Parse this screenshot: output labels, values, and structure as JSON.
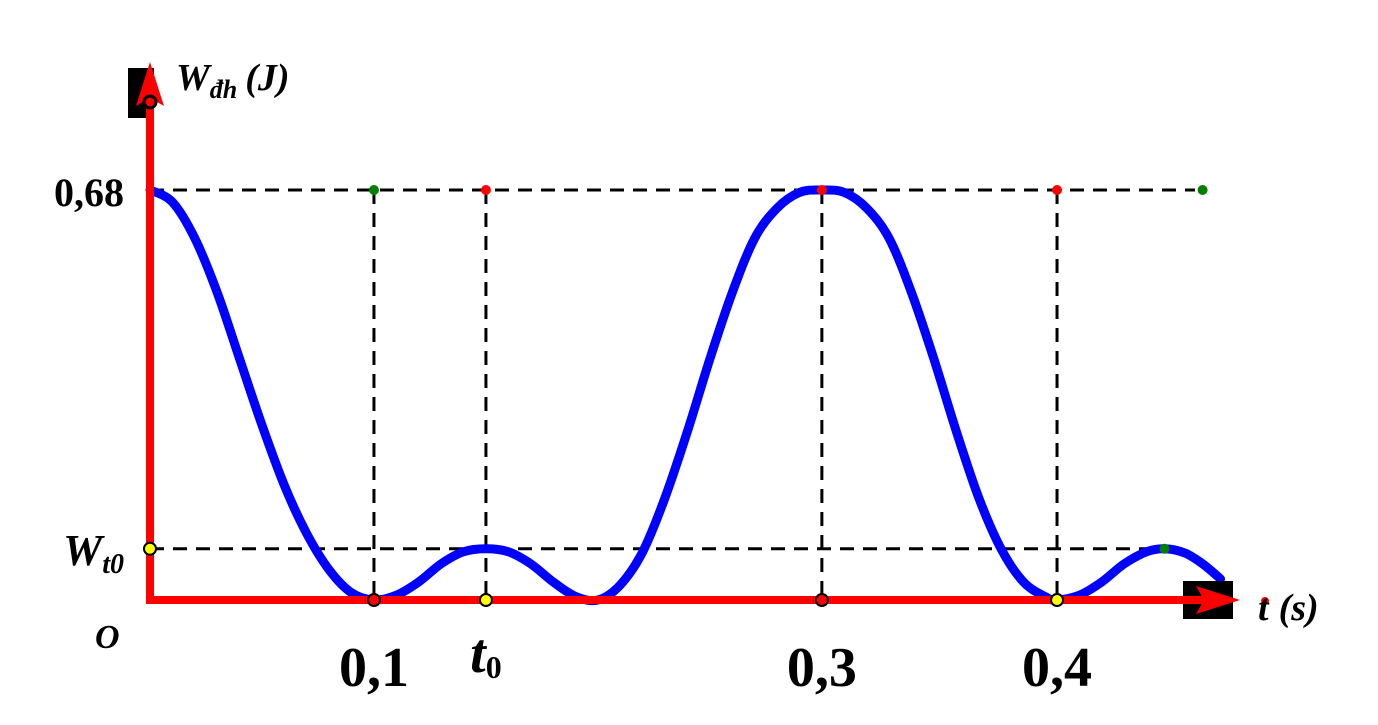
{
  "chart_data": {
    "type": "line",
    "title": "",
    "ylabel": {
      "symbol": "W",
      "subscript": "đh",
      "unit": "(J)"
    },
    "xlabel": {
      "symbol": "t",
      "unit": "(s)"
    },
    "origin_label": "O",
    "xlim": [
      0,
      0.48
    ],
    "ylim": [
      0,
      0.68
    ],
    "y_ticks": [
      {
        "value": 0.68,
        "label": "0,68"
      },
      {
        "value": 0.085,
        "label": "W",
        "subscript": "t0"
      }
    ],
    "x_ticks": [
      {
        "value": 0.1,
        "label": "0,1"
      },
      {
        "value": 0.15,
        "label": "t",
        "subscript": "0"
      },
      {
        "value": 0.3,
        "label": "0,3"
      },
      {
        "value": 0.405,
        "label": "0,4"
      }
    ],
    "series": [
      {
        "color": "#0000ff",
        "points": [
          [
            0.0,
            0.68
          ],
          [
            0.01,
            0.66
          ],
          [
            0.02,
            0.6
          ],
          [
            0.03,
            0.51
          ],
          [
            0.04,
            0.4
          ],
          [
            0.05,
            0.29
          ],
          [
            0.06,
            0.19
          ],
          [
            0.07,
            0.11
          ],
          [
            0.08,
            0.05
          ],
          [
            0.09,
            0.012
          ],
          [
            0.1,
            0.0
          ],
          [
            0.11,
            0.008
          ],
          [
            0.12,
            0.03
          ],
          [
            0.13,
            0.06
          ],
          [
            0.14,
            0.08
          ],
          [
            0.15,
            0.085
          ],
          [
            0.16,
            0.08
          ],
          [
            0.17,
            0.06
          ],
          [
            0.18,
            0.03
          ],
          [
            0.19,
            0.006
          ],
          [
            0.2,
            0.0
          ],
          [
            0.21,
            0.025
          ],
          [
            0.22,
            0.08
          ],
          [
            0.23,
            0.17
          ],
          [
            0.24,
            0.28
          ],
          [
            0.25,
            0.4
          ],
          [
            0.26,
            0.51
          ],
          [
            0.27,
            0.6
          ],
          [
            0.28,
            0.65
          ],
          [
            0.29,
            0.676
          ],
          [
            0.3,
            0.68
          ],
          [
            0.31,
            0.676
          ],
          [
            0.32,
            0.65
          ],
          [
            0.33,
            0.6
          ],
          [
            0.34,
            0.51
          ],
          [
            0.35,
            0.4
          ],
          [
            0.36,
            0.28
          ],
          [
            0.37,
            0.17
          ],
          [
            0.38,
            0.085
          ],
          [
            0.39,
            0.03
          ],
          [
            0.4,
            0.005
          ],
          [
            0.405,
            0.0
          ],
          [
            0.415,
            0.008
          ],
          [
            0.425,
            0.03
          ],
          [
            0.435,
            0.06
          ],
          [
            0.445,
            0.08
          ],
          [
            0.453,
            0.085
          ],
          [
            0.462,
            0.078
          ],
          [
            0.47,
            0.06
          ],
          [
            0.478,
            0.035
          ]
        ]
      }
    ],
    "guide_lines": {
      "color": "#000000",
      "style": "dashed",
      "horizontal": [
        0.68,
        0.085
      ],
      "vertical": [
        {
          "x": 0.1,
          "y": 0.68
        },
        {
          "x": 0.15,
          "y": 0.68
        },
        {
          "x": 0.3,
          "y": 0.68
        },
        {
          "x": 0.405,
          "y": 0.68
        }
      ]
    },
    "markers": [
      {
        "x": 0.1,
        "y": 0.68,
        "fill": "#008000",
        "kind": "dot"
      },
      {
        "x": 0.15,
        "y": 0.68,
        "fill": "#ff0000",
        "kind": "dot"
      },
      {
        "x": 0.3,
        "y": 0.68,
        "fill": "#ff0000",
        "kind": "dot"
      },
      {
        "x": 0.405,
        "y": 0.68,
        "fill": "#ff0000",
        "kind": "dot"
      },
      {
        "x": 0.47,
        "y": 0.68,
        "fill": "#008000",
        "kind": "dot"
      },
      {
        "x": 0.453,
        "y": 0.085,
        "fill": "#008000",
        "kind": "dot"
      },
      {
        "x": 0.1,
        "y": 0,
        "fill": "#ff0000",
        "kind": "ring"
      },
      {
        "x": 0.15,
        "y": 0,
        "fill": "#ffff00",
        "kind": "ring"
      },
      {
        "x": 0.3,
        "y": 0,
        "fill": "#ff0000",
        "kind": "ring"
      },
      {
        "x": 0.405,
        "y": 0,
        "fill": "#ffff00",
        "kind": "ring"
      },
      {
        "x": 0,
        "y": 0.085,
        "fill": "#ffff00",
        "kind": "ring"
      }
    ],
    "axis_color": "#ff0000",
    "grid": false,
    "legend": "none"
  }
}
